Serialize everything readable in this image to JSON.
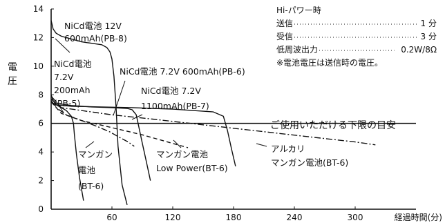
{
  "chart_data": {
    "type": "line",
    "xlabel": "経過時間(分)",
    "ylabel": "電圧",
    "xlim": [
      0,
      360
    ],
    "ylim": [
      0,
      14
    ],
    "xticks": [
      60,
      120,
      180,
      240,
      300
    ],
    "yticks": [
      0,
      2,
      4,
      6,
      8,
      10,
      12,
      14
    ],
    "grid": false,
    "threshold": {
      "y": 6,
      "label": "ご使用いただける下限の目安"
    },
    "series": [
      {
        "label_lines": [
          "NiCd電池 12V",
          "600mAh(PB-8)"
        ],
        "style": "solid",
        "x": [
          0,
          2,
          5,
          10,
          20,
          30,
          40,
          50,
          55,
          58,
          60,
          62,
          64,
          66,
          70,
          75
        ],
        "y": [
          13.2,
          12.6,
          12.3,
          12.1,
          11.9,
          11.7,
          11.6,
          11.5,
          11.3,
          11.0,
          10.5,
          9.3,
          7.2,
          4.4,
          1.7,
          0.3
        ]
      },
      {
        "label_lines": [
          "NiCd電池",
          "7.2V",
          "200mAh",
          "(PB-5)"
        ],
        "style": "solid",
        "x": [
          0,
          2,
          5,
          10,
          15,
          20,
          22,
          23,
          25,
          28,
          32
        ],
        "y": [
          8.0,
          7.6,
          7.3,
          7.1,
          6.9,
          6.5,
          6.0,
          5.2,
          3.8,
          2.2,
          0.6
        ]
      },
      {
        "label_lines": [
          "NiCd電池 7.2V 600mAh(PB-6)"
        ],
        "style": "solid",
        "x": [
          0,
          5,
          20,
          40,
          60,
          75,
          80,
          84,
          87,
          90,
          94,
          98
        ],
        "y": [
          7.7,
          7.4,
          7.25,
          7.15,
          7.1,
          7.05,
          6.95,
          6.6,
          5.6,
          4.6,
          3.3,
          2.0
        ]
      },
      {
        "label_lines": [
          "NiCd電池 7.2V",
          "1100mAh(PB-7)"
        ],
        "style": "solid",
        "x": [
          0,
          5,
          20,
          50,
          80,
          100,
          120,
          140,
          160,
          170,
          174,
          178,
          182
        ],
        "y": [
          7.5,
          7.3,
          7.2,
          7.15,
          7.1,
          7.05,
          7.0,
          6.9,
          6.8,
          6.5,
          5.5,
          4.2,
          3.0
        ]
      },
      {
        "label_lines": [
          "マンガン",
          "電池",
          "(BT-6)"
        ],
        "style": "dashdot",
        "x": [
          0,
          5,
          15,
          30,
          45,
          58,
          68,
          76,
          82
        ],
        "y": [
          7.6,
          7.1,
          6.6,
          6.2,
          5.8,
          5.4,
          5.0,
          4.7,
          4.4
        ]
      },
      {
        "label_lines": [
          "マンガン電池",
          "Low Power(BT-6)"
        ],
        "style": "dashed",
        "x": [
          0,
          10,
          30,
          60,
          90,
          110,
          125,
          135
        ],
        "y": [
          7.5,
          6.7,
          6.2,
          5.7,
          5.2,
          4.8,
          4.5,
          4.3
        ]
      },
      {
        "label_lines": [
          "アルカリ",
          "マンガン電池(BT-6)"
        ],
        "style": "dashdot",
        "x": [
          0,
          10,
          30,
          60,
          100,
          150,
          200,
          250,
          300,
          320
        ],
        "y": [
          7.9,
          7.1,
          6.9,
          6.6,
          6.3,
          5.9,
          5.5,
          5.1,
          4.7,
          4.5
        ]
      }
    ]
  },
  "info_box": {
    "title": "Hi-パワー時",
    "rows": [
      {
        "label": "送信",
        "value": "1 分"
      },
      {
        "label": "受信",
        "value": "3 分"
      },
      {
        "label": "低周波出力",
        "value": "0.2W/8Ω"
      }
    ],
    "note": "※電池電圧は送信時の電圧。"
  }
}
